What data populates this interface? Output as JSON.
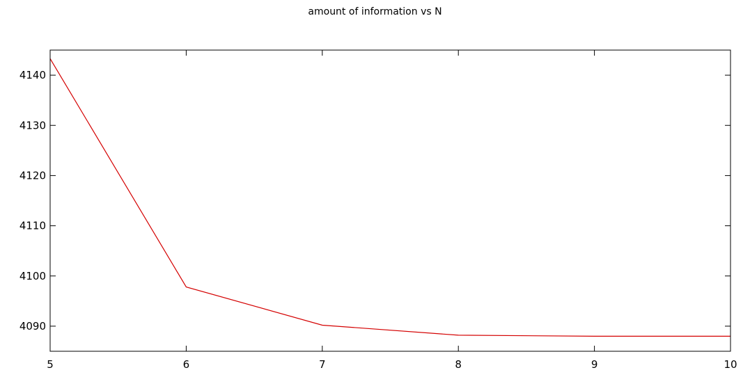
{
  "chart_data": {
    "type": "line",
    "title": "amount of information vs N",
    "xlabel": "",
    "ylabel": "",
    "xlim": [
      5,
      10
    ],
    "ylim": [
      4085,
      4145
    ],
    "x_ticks": [
      5,
      6,
      7,
      8,
      9,
      10
    ],
    "y_ticks": [
      4090,
      4100,
      4110,
      4120,
      4130,
      4140
    ],
    "grid": false,
    "legend": "none",
    "series": [
      {
        "color": "#d40000",
        "x": [
          5,
          6,
          7,
          8,
          9,
          10
        ],
        "values": [
          4143.3,
          4097.8,
          4090.2,
          4088.2,
          4088.0,
          4088.0
        ]
      }
    ]
  }
}
